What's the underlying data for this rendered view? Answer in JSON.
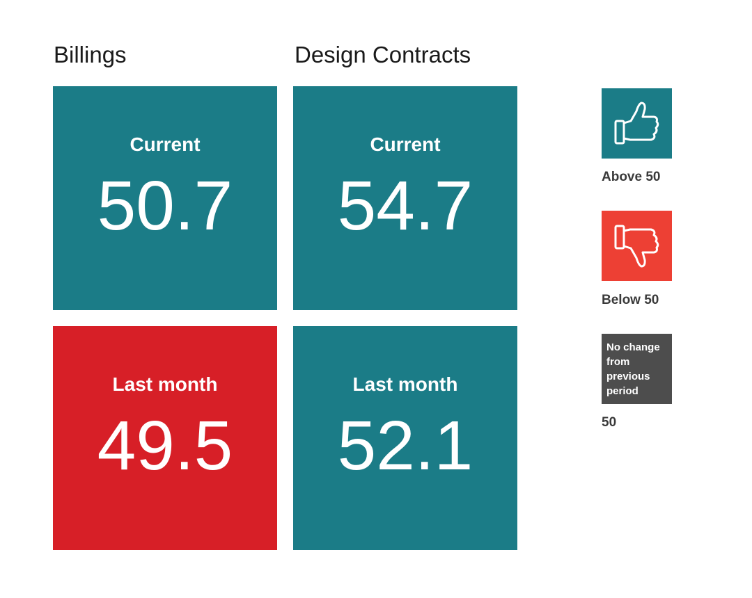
{
  "columns": [
    {
      "title": "Billings",
      "tiles": [
        {
          "label": "Current",
          "value": "50.7",
          "color": "#1b7c87"
        },
        {
          "label": "Last month",
          "value": "49.5",
          "color": "#d71f27"
        }
      ]
    },
    {
      "title": "Design Contracts",
      "tiles": [
        {
          "label": "Current",
          "value": "54.7",
          "color": "#1b7c87"
        },
        {
          "label": "Last month",
          "value": "52.1",
          "color": "#1b7c87"
        }
      ]
    }
  ],
  "legend": {
    "above": {
      "icon": "thumbs-up-icon",
      "label": "Above 50",
      "color": "#1b7c87"
    },
    "below": {
      "icon": "thumbs-down-icon",
      "label": "Below 50",
      "color": "#ed4034"
    },
    "no_change": {
      "box_text": "No change from previous period",
      "label": "50",
      "color": "#4d4d4d"
    }
  }
}
